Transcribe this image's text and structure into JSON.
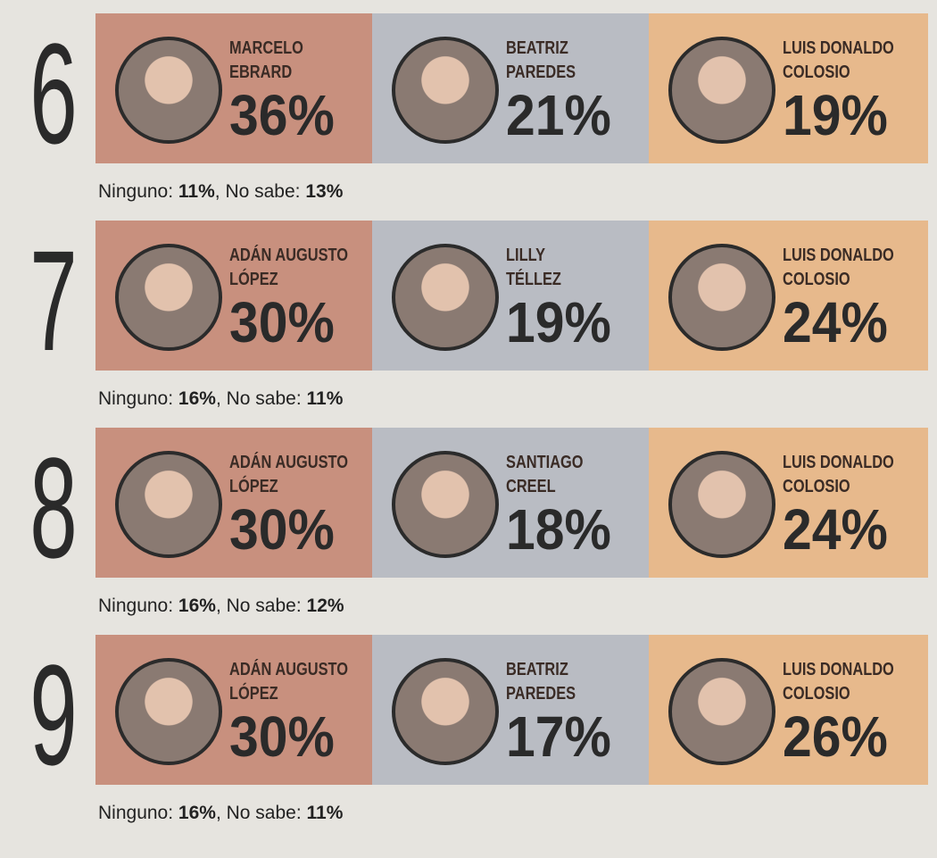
{
  "scenarios": [
    {
      "number": "6",
      "candidates": [
        {
          "name": [
            "MARCELO",
            "EBRARD"
          ],
          "pct": "36%"
        },
        {
          "name": [
            "BEATRIZ",
            "PAREDES"
          ],
          "pct": "21%"
        },
        {
          "name": [
            "LUIS DONALDO",
            "COLOSIO"
          ],
          "pct": "19%"
        }
      ],
      "footer": {
        "ninguno_label": "Ninguno:",
        "ninguno": "11%",
        "nosabe_label": ", No sabe:",
        "nosabe": "13%"
      }
    },
    {
      "number": "7",
      "candidates": [
        {
          "name": [
            "ADÁN AUGUSTO",
            "LÓPEZ"
          ],
          "pct": "30%"
        },
        {
          "name": [
            "LILLY",
            "TÉLLEZ"
          ],
          "pct": "19%"
        },
        {
          "name": [
            "LUIS DONALDO",
            "COLOSIO"
          ],
          "pct": "24%"
        }
      ],
      "footer": {
        "ninguno_label": "Ninguno:",
        "ninguno": "16%",
        "nosabe_label": ", No sabe:",
        "nosabe": "11%"
      }
    },
    {
      "number": "8",
      "candidates": [
        {
          "name": [
            "ADÁN AUGUSTO",
            "LÓPEZ"
          ],
          "pct": "30%"
        },
        {
          "name": [
            "SANTIAGO",
            "CREEL"
          ],
          "pct": "18%"
        },
        {
          "name": [
            "LUIS DONALDO",
            "COLOSIO"
          ],
          "pct": "24%"
        }
      ],
      "footer": {
        "ninguno_label": "Ninguno:",
        "ninguno": "16%",
        "nosabe_label": ", No sabe:",
        "nosabe": "12%"
      }
    },
    {
      "number": "9",
      "candidates": [
        {
          "name": [
            "ADÁN AUGUSTO",
            "LÓPEZ"
          ],
          "pct": "30%"
        },
        {
          "name": [
            "BEATRIZ",
            "PAREDES"
          ],
          "pct": "17%"
        },
        {
          "name": [
            "LUIS DONALDO",
            "COLOSIO"
          ],
          "pct": "26%"
        }
      ],
      "footer": {
        "ninguno_label": "Ninguno:",
        "ninguno": "16%",
        "nosabe_label": ", No sabe:",
        "nosabe": "11%"
      }
    }
  ]
}
